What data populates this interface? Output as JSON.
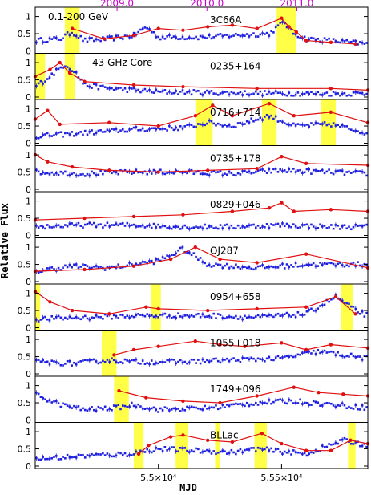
{
  "chart_data": {
    "type": "line",
    "xlabel": "MJD",
    "ylabel": "Relative Flux",
    "xlim": [
      54500,
      55850
    ],
    "ylim": [
      0,
      1.2
    ],
    "x_ticks": [
      {
        "value": 55000,
        "label": "5.5×10⁴"
      },
      {
        "value": 55500,
        "label": "5.55×10⁴"
      }
    ],
    "y_ticks": [
      0,
      0.5,
      1
    ],
    "top_axis_ticks": [
      {
        "value": 54832,
        "label": "2009.0"
      },
      {
        "value": 55197,
        "label": "2010.0"
      },
      {
        "value": 55562,
        "label": "2011.0"
      }
    ],
    "legend": [
      {
        "label": "0.1-200 GeV",
        "color": "#1f1fe0"
      },
      {
        "label": "43 GHz Core",
        "color": "#e01010"
      }
    ],
    "colors": {
      "gamma": "#1f1fe0",
      "radio": "#e01010",
      "flare": "#ffff33",
      "year_axis": "#cc00cc"
    },
    "panels": [
      {
        "source": "3C66A",
        "flare_periods": [
          [
            54620,
            54680
          ],
          [
            55480,
            55560
          ]
        ],
        "gamma_ctrl": [
          [
            54500,
            0.3
          ],
          [
            54600,
            0.35
          ],
          [
            54650,
            0.55
          ],
          [
            54700,
            0.3
          ],
          [
            54800,
            0.35
          ],
          [
            54900,
            0.45
          ],
          [
            54950,
            0.7
          ],
          [
            55000,
            0.4
          ],
          [
            55200,
            0.4
          ],
          [
            55300,
            0.45
          ],
          [
            55450,
            0.5
          ],
          [
            55510,
            0.85
          ],
          [
            55540,
            0.55
          ],
          [
            55600,
            0.35
          ],
          [
            55700,
            0.3
          ],
          [
            55850,
            0.2
          ]
        ],
        "radio": [
          [
            54650,
            0.65
          ],
          [
            54780,
            0.35
          ],
          [
            54900,
            0.45
          ],
          [
            55000,
            0.65
          ],
          [
            55100,
            0.6
          ],
          [
            55200,
            0.7
          ],
          [
            55300,
            0.75
          ],
          [
            55400,
            0.65
          ],
          [
            55500,
            0.95
          ],
          [
            55530,
            0.7
          ],
          [
            55560,
            0.55
          ],
          [
            55600,
            0.3
          ],
          [
            55700,
            0.25
          ],
          [
            55800,
            0.2
          ]
        ]
      },
      {
        "source": "0235+164",
        "flare_periods": [
          [
            54500,
            54540
          ],
          [
            54620,
            54660
          ]
        ],
        "gamma_ctrl": [
          [
            54500,
            0.3
          ],
          [
            54550,
            0.55
          ],
          [
            54620,
            0.95
          ],
          [
            54660,
            0.75
          ],
          [
            54700,
            0.35
          ],
          [
            54800,
            0.25
          ],
          [
            55000,
            0.15
          ],
          [
            55300,
            0.12
          ],
          [
            55600,
            0.1
          ],
          [
            55850,
            0.1
          ]
        ],
        "radio": [
          [
            54500,
            0.6
          ],
          [
            54560,
            0.8
          ],
          [
            54600,
            1.0
          ],
          [
            54640,
            0.7
          ],
          [
            54700,
            0.45
          ],
          [
            54900,
            0.35
          ],
          [
            55100,
            0.3
          ],
          [
            55400,
            0.25
          ],
          [
            55700,
            0.25
          ],
          [
            55850,
            0.2
          ]
        ]
      },
      {
        "source": "0716+714",
        "flare_periods": [
          [
            55150,
            55220
          ],
          [
            55420,
            55480
          ],
          [
            55660,
            55720
          ]
        ],
        "gamma_ctrl": [
          [
            54500,
            0.2
          ],
          [
            54700,
            0.3
          ],
          [
            54900,
            0.4
          ],
          [
            55100,
            0.45
          ],
          [
            55200,
            0.6
          ],
          [
            55300,
            0.5
          ],
          [
            55450,
            0.8
          ],
          [
            55550,
            0.5
          ],
          [
            55700,
            0.55
          ],
          [
            55850,
            0.3
          ]
        ],
        "radio": [
          [
            54500,
            0.7
          ],
          [
            54550,
            0.95
          ],
          [
            54600,
            0.55
          ],
          [
            54800,
            0.6
          ],
          [
            55000,
            0.5
          ],
          [
            55150,
            0.8
          ],
          [
            55220,
            1.1
          ],
          [
            55300,
            0.8
          ],
          [
            55450,
            1.15
          ],
          [
            55550,
            0.8
          ],
          [
            55700,
            0.9
          ],
          [
            55850,
            0.6
          ]
        ]
      },
      {
        "source": "0735+178",
        "flare_periods": [],
        "gamma_ctrl": [
          [
            54500,
            0.5
          ],
          [
            54700,
            0.45
          ],
          [
            54900,
            0.5
          ],
          [
            55100,
            0.5
          ],
          [
            55300,
            0.45
          ],
          [
            55500,
            0.55
          ],
          [
            55700,
            0.5
          ],
          [
            55850,
            0.45
          ]
        ],
        "radio": [
          [
            54500,
            1.0
          ],
          [
            54550,
            0.8
          ],
          [
            54650,
            0.65
          ],
          [
            54800,
            0.55
          ],
          [
            55000,
            0.5
          ],
          [
            55200,
            0.55
          ],
          [
            55400,
            0.6
          ],
          [
            55500,
            0.95
          ],
          [
            55600,
            0.75
          ],
          [
            55850,
            0.7
          ]
        ]
      },
      {
        "source": "0829+046",
        "flare_periods": [],
        "gamma_ctrl": [
          [
            54500,
            0.25
          ],
          [
            54700,
            0.3
          ],
          [
            54900,
            0.3
          ],
          [
            55100,
            0.25
          ],
          [
            55300,
            0.25
          ],
          [
            55500,
            0.3
          ],
          [
            55700,
            0.25
          ],
          [
            55850,
            0.25
          ]
        ],
        "radio": [
          [
            54500,
            0.45
          ],
          [
            54700,
            0.5
          ],
          [
            54900,
            0.55
          ],
          [
            55100,
            0.6
          ],
          [
            55300,
            0.7
          ],
          [
            55450,
            0.8
          ],
          [
            55500,
            0.95
          ],
          [
            55550,
            0.7
          ],
          [
            55700,
            0.75
          ],
          [
            55850,
            0.7
          ]
        ]
      },
      {
        "source": "OJ287",
        "flare_periods": [],
        "gamma_ctrl": [
          [
            54500,
            0.3
          ],
          [
            54650,
            0.45
          ],
          [
            54800,
            0.4
          ],
          [
            55000,
            0.6
          ],
          [
            55100,
            0.95
          ],
          [
            55200,
            0.5
          ],
          [
            55400,
            0.4
          ],
          [
            55600,
            0.5
          ],
          [
            55850,
            0.5
          ]
        ],
        "radio": [
          [
            54500,
            0.3
          ],
          [
            54700,
            0.35
          ],
          [
            54900,
            0.45
          ],
          [
            55050,
            0.65
          ],
          [
            55150,
            1.0
          ],
          [
            55250,
            0.65
          ],
          [
            55400,
            0.55
          ],
          [
            55600,
            0.8
          ],
          [
            55850,
            0.4
          ]
        ]
      },
      {
        "source": "0954+658",
        "flare_periods": [
          [
            54500,
            54520
          ],
          [
            54970,
            55010
          ],
          [
            55740,
            55790
          ]
        ],
        "gamma_ctrl": [
          [
            54500,
            0.25
          ],
          [
            54700,
            0.3
          ],
          [
            54900,
            0.35
          ],
          [
            55000,
            0.35
          ],
          [
            55200,
            0.35
          ],
          [
            55400,
            0.3
          ],
          [
            55600,
            0.4
          ],
          [
            55720,
            0.9
          ],
          [
            55800,
            0.5
          ],
          [
            55850,
            0.35
          ]
        ],
        "radio": [
          [
            54500,
            1.05
          ],
          [
            54560,
            0.75
          ],
          [
            54650,
            0.5
          ],
          [
            54800,
            0.4
          ],
          [
            54950,
            0.6
          ],
          [
            55000,
            0.55
          ],
          [
            55200,
            0.5
          ],
          [
            55400,
            0.55
          ],
          [
            55600,
            0.6
          ],
          [
            55720,
            0.9
          ],
          [
            55800,
            0.4
          ]
        ]
      },
      {
        "source": "1055+018",
        "flare_periods": [
          [
            54770,
            54830
          ]
        ],
        "gamma_ctrl": [
          [
            54500,
            0.35
          ],
          [
            54650,
            0.3
          ],
          [
            54800,
            0.4
          ],
          [
            54900,
            0.35
          ],
          [
            55100,
            0.35
          ],
          [
            55300,
            0.4
          ],
          [
            55500,
            0.45
          ],
          [
            55650,
            0.65
          ],
          [
            55750,
            0.55
          ],
          [
            55850,
            0.45
          ]
        ],
        "radio": [
          [
            54820,
            0.55
          ],
          [
            54900,
            0.7
          ],
          [
            55000,
            0.8
          ],
          [
            55150,
            0.95
          ],
          [
            55250,
            0.85
          ],
          [
            55350,
            0.8
          ],
          [
            55500,
            0.9
          ],
          [
            55600,
            0.7
          ],
          [
            55700,
            0.85
          ],
          [
            55850,
            0.75
          ]
        ]
      },
      {
        "source": "1749+096",
        "flare_periods": [
          [
            54820,
            54880
          ]
        ],
        "gamma_ctrl": [
          [
            54500,
            0.75
          ],
          [
            54600,
            0.45
          ],
          [
            54700,
            0.3
          ],
          [
            54820,
            0.35
          ],
          [
            54900,
            0.45
          ],
          [
            55000,
            0.3
          ],
          [
            55200,
            0.35
          ],
          [
            55400,
            0.5
          ],
          [
            55550,
            0.55
          ],
          [
            55700,
            0.45
          ],
          [
            55850,
            0.35
          ]
        ],
        "radio": [
          [
            54840,
            0.85
          ],
          [
            54950,
            0.65
          ],
          [
            55100,
            0.55
          ],
          [
            55250,
            0.5
          ],
          [
            55400,
            0.7
          ],
          [
            55550,
            0.95
          ],
          [
            55650,
            0.8
          ],
          [
            55750,
            0.75
          ],
          [
            55850,
            0.7
          ]
        ]
      },
      {
        "source": "BLLac",
        "flare_periods": [
          [
            54900,
            54940
          ],
          [
            55070,
            55120
          ],
          [
            55230,
            55250
          ],
          [
            55390,
            55440
          ],
          [
            55770,
            55800
          ]
        ],
        "gamma_ctrl": [
          [
            54500,
            0.2
          ],
          [
            54700,
            0.3
          ],
          [
            54880,
            0.35
          ],
          [
            55000,
            0.5
          ],
          [
            55150,
            0.45
          ],
          [
            55300,
            0.4
          ],
          [
            55400,
            0.5
          ],
          [
            55600,
            0.35
          ],
          [
            55750,
            0.75
          ],
          [
            55850,
            0.6
          ]
        ],
        "radio": [
          [
            54920,
            0.35
          ],
          [
            54960,
            0.6
          ],
          [
            55050,
            0.85
          ],
          [
            55100,
            0.9
          ],
          [
            55200,
            0.75
          ],
          [
            55300,
            0.7
          ],
          [
            55420,
            0.95
          ],
          [
            55500,
            0.65
          ],
          [
            55600,
            0.45
          ],
          [
            55700,
            0.45
          ],
          [
            55780,
            0.75
          ],
          [
            55850,
            0.65
          ]
        ]
      }
    ]
  }
}
